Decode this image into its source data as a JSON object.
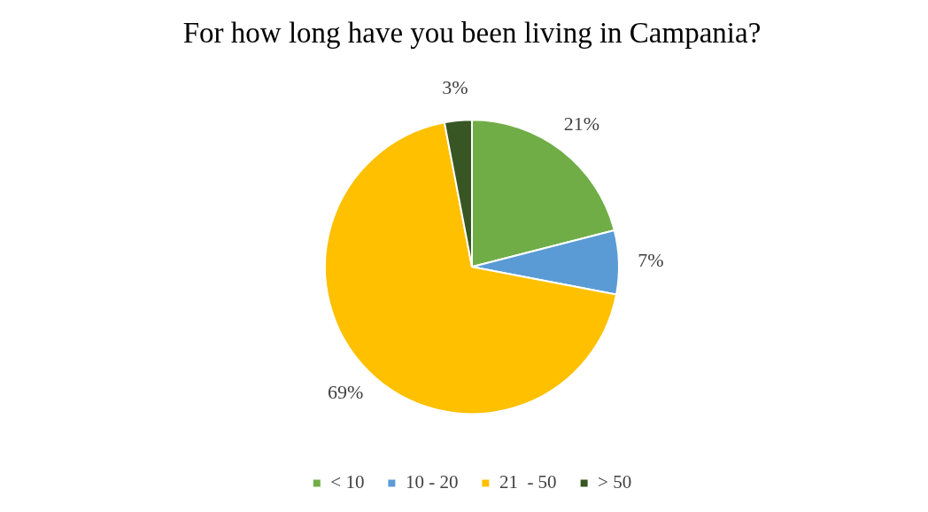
{
  "chart_data": {
    "type": "pie",
    "title": "For how long have you been living in Campania?",
    "categories": [
      "< 10",
      "10 - 20",
      "21  - 50",
      "> 50"
    ],
    "values": [
      21,
      7,
      69,
      3
    ],
    "colors": [
      "#70ad47",
      "#5b9bd5",
      "#ffc000",
      "#375623"
    ],
    "value_labels": [
      "21%",
      "7%",
      "69%",
      "3%"
    ],
    "legend": "bottom"
  }
}
